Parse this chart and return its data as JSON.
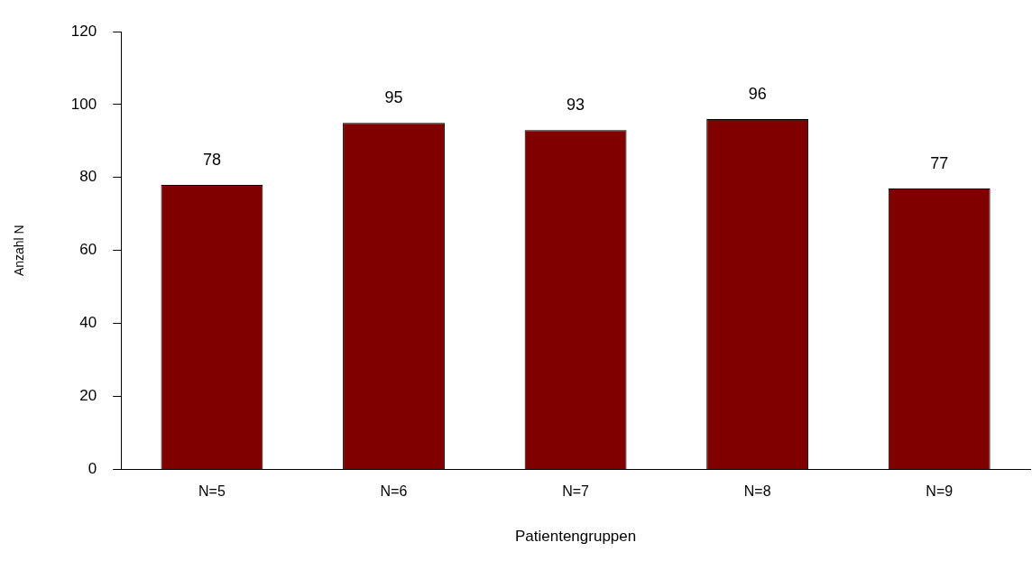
{
  "chart_data": {
    "type": "bar",
    "xlabel": "Patientengruppen",
    "ylabel": "Anzahl N",
    "categories": [
      "N=5",
      "N=6",
      "N=7",
      "N=8",
      "N=9"
    ],
    "values": [
      78,
      95,
      93,
      96,
      77
    ],
    "color": "#800000",
    "ylim": [
      0,
      120
    ],
    "yticks": [
      0,
      20,
      40,
      60,
      80,
      100,
      120
    ],
    "grid": false,
    "legend": false,
    "data_labels": true
  }
}
